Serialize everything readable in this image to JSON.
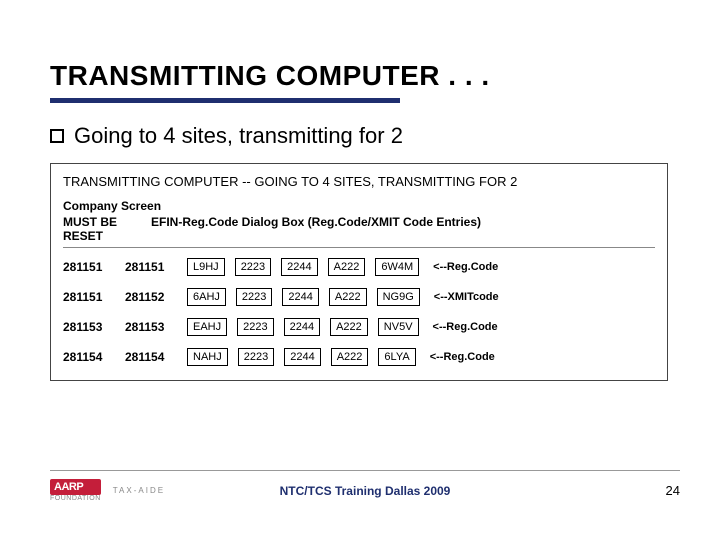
{
  "title": "TRANSMITTING COMPUTER . . .",
  "bullet_text": "Going to 4 sites, transmitting for 2",
  "panel": {
    "heading": "TRANSMITTING COMPUTER -- GOING TO 4 SITES, TRANSMITTING FOR 2",
    "sub1": "Company Screen",
    "header_col0": "MUST BE RESET",
    "header_col1": "EFIN-Reg.Code Dialog Box (Reg.Code/XMIT Code Entries)",
    "rows": [
      {
        "c0": "281151",
        "c1": "281151",
        "c2": "L9HJ",
        "c3": "2223",
        "c4": "2244",
        "c5": "A222",
        "c6": "6W4M",
        "label": "<--Reg.Code"
      },
      {
        "c0": "281151",
        "c1": "281152",
        "c2": "6AHJ",
        "c3": "2223",
        "c4": "2244",
        "c5": "A222",
        "c6": "NG9G",
        "label": "<--XMITcode"
      },
      {
        "c0": "281153",
        "c1": "281153",
        "c2": "EAHJ",
        "c3": "2223",
        "c4": "2244",
        "c5": "A222",
        "c6": "NV5V",
        "label": "<--Reg.Code"
      },
      {
        "c0": "281154",
        "c1": "281154",
        "c2": "NAHJ",
        "c3": "2223",
        "c4": "2244",
        "c5": "A222",
        "c6": "6LYA",
        "label": "<--Reg.Code"
      }
    ]
  },
  "footer": {
    "logo_main": "AARP",
    "logo_sub": "FOUNDATION",
    "logo_taxaide": "TAX-AIDE",
    "center": "NTC/TCS Training Dallas 2009",
    "page": "24"
  },
  "colors": {
    "rule": "#1f2f6f",
    "logo_bg": "#c41e3a"
  }
}
